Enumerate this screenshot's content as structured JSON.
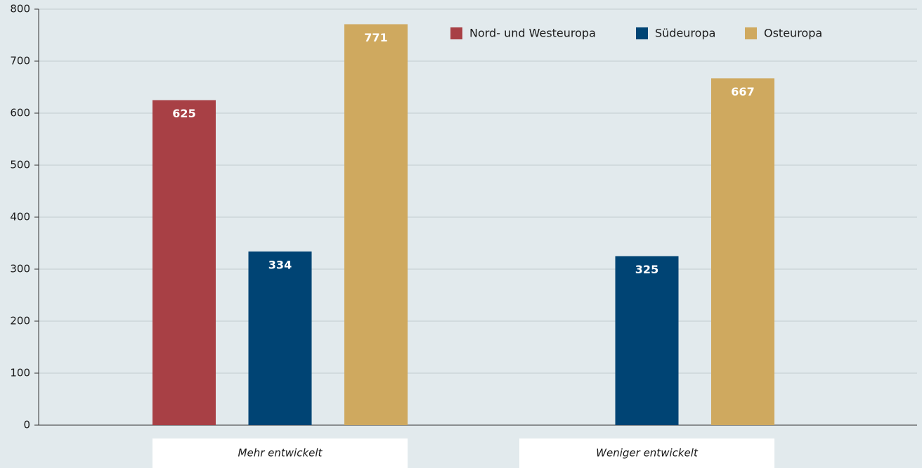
{
  "chart_data": {
    "type": "bar",
    "categories": [
      "Mehr entwickelt",
      "Weniger entwickelt"
    ],
    "series": [
      {
        "name": "Nord- und Westeuropa",
        "color": "#a84045",
        "values": [
          625,
          null
        ]
      },
      {
        "name": "Südeuropa",
        "color": "#004474",
        "values": [
          334,
          325
        ]
      },
      {
        "name": "Osteuropa",
        "color": "#cfa95f",
        "values": [
          771,
          667
        ]
      }
    ],
    "ylim": [
      0,
      800
    ],
    "yticks": [
      0,
      100,
      200,
      300,
      400,
      500,
      600,
      700,
      800
    ],
    "grid": true
  }
}
